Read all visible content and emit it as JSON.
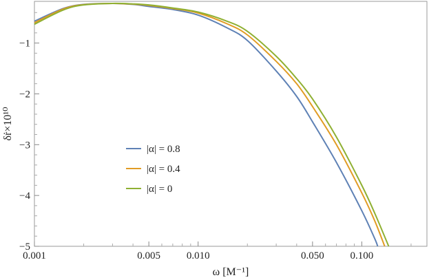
{
  "chart_data": {
    "type": "line",
    "xlabel": "ω [M⁻¹]",
    "ylabel": "δṙ×10¹⁰",
    "x_scale": "log",
    "xlim": [
      0.001,
      0.25
    ],
    "ylim": [
      -5,
      -0.18
    ],
    "grid": false,
    "legend_position": "center-left",
    "x_ticks": [
      {
        "value": 0.001,
        "label": "0.001"
      },
      {
        "value": 0.005,
        "label": "0.005"
      },
      {
        "value": 0.01,
        "label": "0.010"
      },
      {
        "value": 0.05,
        "label": "0.050"
      },
      {
        "value": 0.1,
        "label": "0.100"
      }
    ],
    "y_ticks": [
      {
        "value": -1,
        "label": "−1"
      },
      {
        "value": -2,
        "label": "−2"
      },
      {
        "value": -3,
        "label": "−3"
      },
      {
        "value": -4,
        "label": "−4"
      },
      {
        "value": -5,
        "label": "−5"
      }
    ],
    "series": [
      {
        "name": "|α| = 0.8",
        "color": "#5e81b5",
        "x": [
          0.001,
          0.0015,
          0.002,
          0.003,
          0.004,
          0.005,
          0.007,
          0.01,
          0.015,
          0.02,
          0.03,
          0.04,
          0.05,
          0.07,
          0.1,
          0.12,
          0.125
        ],
        "y": [
          -0.57,
          -0.32,
          -0.24,
          -0.22,
          -0.24,
          -0.28,
          -0.34,
          -0.45,
          -0.7,
          -0.95,
          -1.55,
          -2.05,
          -2.55,
          -3.35,
          -4.3,
          -4.85,
          -5.0
        ]
      },
      {
        "name": "|α| = 0.4",
        "color": "#e19c24",
        "x": [
          0.001,
          0.0015,
          0.002,
          0.003,
          0.004,
          0.005,
          0.007,
          0.01,
          0.015,
          0.02,
          0.03,
          0.04,
          0.05,
          0.07,
          0.1,
          0.12,
          0.138
        ],
        "y": [
          -0.6,
          -0.33,
          -0.245,
          -0.22,
          -0.235,
          -0.26,
          -0.32,
          -0.41,
          -0.62,
          -0.84,
          -1.36,
          -1.8,
          -2.25,
          -3.0,
          -3.95,
          -4.5,
          -5.0
        ]
      },
      {
        "name": "|α| = 0",
        "color": "#8fb032",
        "x": [
          0.001,
          0.0015,
          0.002,
          0.003,
          0.004,
          0.005,
          0.007,
          0.01,
          0.015,
          0.02,
          0.03,
          0.04,
          0.05,
          0.07,
          0.1,
          0.12,
          0.146
        ],
        "y": [
          -0.63,
          -0.35,
          -0.25,
          -0.22,
          -0.23,
          -0.25,
          -0.31,
          -0.39,
          -0.57,
          -0.77,
          -1.26,
          -1.7,
          -2.1,
          -2.85,
          -3.8,
          -4.35,
          -5.0
        ]
      }
    ]
  }
}
